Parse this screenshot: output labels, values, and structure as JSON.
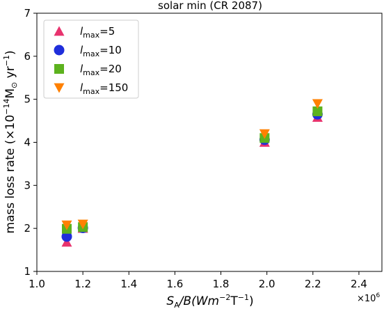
{
  "chart_data": {
    "type": "scatter",
    "title": "solar min (CR 2087)",
    "xlabel": {
      "main": "S",
      "sub": "A",
      "rest": "/B(Wm",
      "sup1": "−2",
      "mid": "T",
      "sup2": "−1",
      "end": ")"
    },
    "ylabel": {
      "pre": "mass loss rate (×10",
      "sup": "−14",
      "mid": "M",
      "sub": "⊙",
      "mid2": " yr",
      "sup2": "−1",
      "end": ")"
    },
    "x_multiplier": {
      "base": "×10",
      "exp": "6"
    },
    "xlim": [
      1.0,
      2.5
    ],
    "ylim": [
      1,
      7
    ],
    "xticks": [
      1.0,
      1.2,
      1.4,
      1.6,
      1.8,
      2.0,
      2.2,
      2.4
    ],
    "xtick_labels": [
      "1.0",
      "1.2",
      "1.4",
      "1.6",
      "1.8",
      "2.0",
      "2.2",
      "2.4"
    ],
    "yticks": [
      1,
      2,
      3,
      4,
      5,
      6,
      7
    ],
    "ytick_labels": [
      "1",
      "2",
      "3",
      "4",
      "5",
      "6",
      "7"
    ],
    "grid": false,
    "legend_position": "top-left",
    "series": [
      {
        "name": {
          "pre": "l",
          "sub": "max",
          "post": "=5"
        },
        "marker": "triangle-up",
        "color": "#e8336e",
        "points": [
          [
            1.13,
            1.68
          ],
          [
            1.2,
            2.0
          ],
          [
            1.99,
            4.0
          ],
          [
            2.22,
            4.58
          ]
        ]
      },
      {
        "name": {
          "pre": "l",
          "sub": "max",
          "post": "=10"
        },
        "marker": "circle",
        "color": "#1f2edb",
        "points": [
          [
            1.13,
            1.81
          ],
          [
            1.2,
            2.01
          ],
          [
            1.99,
            4.06
          ],
          [
            2.22,
            4.65
          ]
        ]
      },
      {
        "name": {
          "pre": "l",
          "sub": "max",
          "post": "=20"
        },
        "marker": "square",
        "color": "#5cb21e",
        "points": [
          [
            1.13,
            1.99
          ],
          [
            1.2,
            2.03
          ],
          [
            1.99,
            4.1
          ],
          [
            2.22,
            4.72
          ]
        ]
      },
      {
        "name": {
          "pre": "l",
          "sub": "max",
          "post": "=150"
        },
        "marker": "triangle-down",
        "color": "#ff8000",
        "points": [
          [
            1.13,
            2.08
          ],
          [
            1.2,
            2.1
          ],
          [
            1.99,
            4.2
          ],
          [
            2.22,
            4.9
          ]
        ]
      }
    ]
  }
}
